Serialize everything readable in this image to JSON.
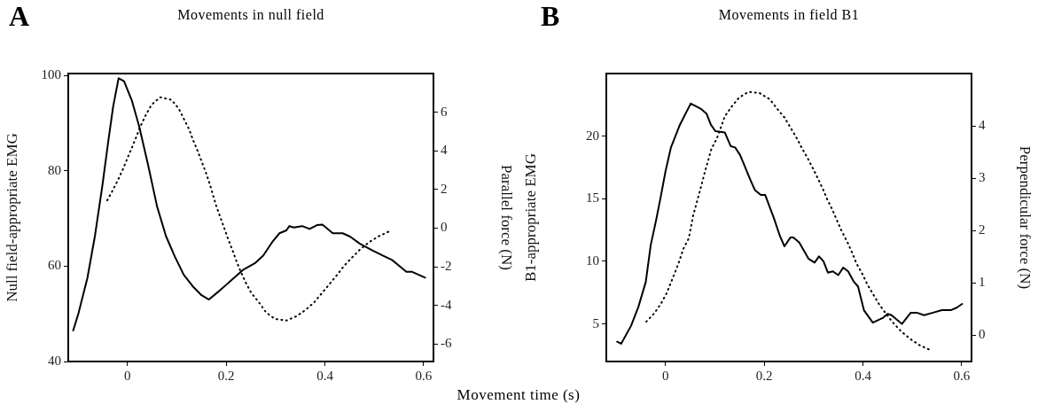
{
  "chart_data": [
    {
      "type": "line",
      "title": "Movements in null field",
      "xlabel": "Movement time (s)",
      "ylabel": "Null field-appropriate EMG",
      "y2label": "Parallel force (N)",
      "annotations": [
        "A"
      ],
      "xlim": [
        -0.12,
        0.62
      ],
      "xticks": [
        0,
        0.2,
        0.4,
        0.6
      ],
      "ylim": [
        40,
        100.4
      ],
      "yticks": [
        40,
        60,
        80,
        100
      ],
      "y2lim": [
        -6.9,
        8
      ],
      "y2ticks": [
        -6,
        -4,
        -2,
        0,
        2,
        4,
        6
      ],
      "series": [
        {
          "type": "line",
          "color": "#000000",
          "line_style": "solid",
          "x": [
            -0.11,
            -0.099,
            -0.081,
            -0.066,
            -0.051,
            -0.039,
            -0.029,
            -0.018,
            -0.007,
            0.009,
            0.024,
            0.042,
            0.06,
            0.078,
            0.096,
            0.114,
            0.132,
            0.15,
            0.165,
            0.186,
            0.21,
            0.234,
            0.258,
            0.275,
            0.293,
            0.308,
            0.322,
            0.328,
            0.337,
            0.354,
            0.369,
            0.384,
            0.395,
            0.416,
            0.436,
            0.451,
            0.471,
            0.498,
            0.518,
            0.536,
            0.55,
            0.565,
            0.577,
            0.603
          ],
          "values": [
            46.5,
            50.2,
            57.6,
            66.3,
            76.8,
            86.1,
            93.5,
            99.4,
            98.8,
            94.7,
            89.2,
            81.1,
            72.5,
            66.3,
            62.0,
            58.2,
            55.8,
            53.9,
            53.0,
            54.8,
            57.0,
            59.2,
            60.6,
            62.2,
            65.0,
            66.9,
            67.5,
            68.4,
            68.1,
            68.4,
            67.8,
            68.6,
            68.7,
            66.9,
            66.9,
            66.2,
            64.7,
            63.2,
            62.2,
            61.3,
            60.1,
            58.8,
            58.8,
            57.6
          ]
        },
        {
          "type": "line",
          "color": "#000000",
          "line_style": "dotted",
          "axis": "y2",
          "x": [
            -0.041,
            -0.03,
            -0.019,
            -0.009,
            0,
            0.009,
            0.018,
            0.027,
            0.037,
            0.049,
            0.066,
            0.089,
            0.104,
            0.114,
            0.125,
            0.133,
            0.142,
            0.151,
            0.159,
            0.167,
            0.18,
            0.188,
            0.196,
            0.204,
            0.213,
            0.221,
            0.23,
            0.24,
            0.251,
            0.267,
            0.281,
            0.299,
            0.322,
            0.343,
            0.362,
            0.379,
            0.394,
            0.41,
            0.425,
            0.439,
            0.455,
            0.471,
            0.49,
            0.509,
            0.531
          ],
          "values": [
            1.44,
            1.95,
            2.51,
            3.06,
            3.63,
            4.17,
            4.73,
            5.31,
            5.85,
            6.39,
            6.77,
            6.64,
            6.18,
            5.67,
            5.11,
            4.55,
            4.01,
            3.4,
            2.87,
            2.26,
            1.14,
            0.57,
            0.01,
            -0.57,
            -1.16,
            -1.72,
            -2.28,
            -2.83,
            -3.36,
            -3.86,
            -4.37,
            -4.7,
            -4.78,
            -4.55,
            -4.21,
            -3.82,
            -3.36,
            -2.87,
            -2.41,
            -1.95,
            -1.52,
            -1.11,
            -0.72,
            -0.42,
            -0.16
          ]
        }
      ]
    },
    {
      "type": "line",
      "title": "Movements in field B1",
      "ylabel": "B1-appropriate EMG",
      "y2label": "Perpendicular force (N)",
      "annotations": [
        "B"
      ],
      "xlim": [
        -0.12,
        0.62
      ],
      "xticks": [
        0,
        0.2,
        0.4,
        0.6
      ],
      "ylim": [
        2,
        25
      ],
      "yticks": [
        5,
        10,
        15,
        20
      ],
      "y2lim": [
        -0.5,
        5
      ],
      "y2ticks": [
        0,
        1,
        2,
        3,
        4
      ],
      "series": [
        {
          "type": "line",
          "color": "#000000",
          "line_style": "solid",
          "x": [
            -0.098,
            -0.09,
            -0.07,
            -0.055,
            -0.04,
            -0.03,
            -0.019,
            -0.01,
            0,
            0.011,
            0.029,
            0.051,
            0.071,
            0.083,
            0.092,
            0.101,
            0.12,
            0.132,
            0.141,
            0.151,
            0.172,
            0.181,
            0.193,
            0.202,
            0.22,
            0.232,
            0.241,
            0.253,
            0.259,
            0.271,
            0.29,
            0.302,
            0.311,
            0.32,
            0.329,
            0.339,
            0.35,
            0.36,
            0.37,
            0.381,
            0.39,
            0.402,
            0.42,
            0.441,
            0.45,
            0.458,
            0.479,
            0.497,
            0.509,
            0.524,
            0.542,
            0.56,
            0.578,
            0.59,
            0.601
          ],
          "values": [
            3.59,
            3.42,
            4.84,
            6.36,
            8.36,
            11.3,
            13.3,
            15.1,
            17.2,
            19.1,
            20.9,
            22.6,
            22.2,
            21.8,
            20.9,
            20.4,
            20.3,
            19.2,
            19.1,
            18.5,
            16.5,
            15.7,
            15.3,
            15.3,
            13.4,
            12.0,
            11.2,
            11.9,
            11.9,
            11.5,
            10.2,
            9.9,
            10.4,
            10.0,
            9.1,
            9.2,
            8.9,
            9.5,
            9.2,
            8.4,
            8.0,
            6.1,
            5.1,
            5.5,
            5.8,
            5.7,
            5.0,
            5.9,
            5.9,
            5.7,
            5.9,
            6.1,
            6.1,
            6.3,
            6.6
          ]
        },
        {
          "type": "line",
          "color": "#000000",
          "line_style": "dotted",
          "axis": "y2",
          "x": [
            -0.039,
            -0.022,
            -0.009,
            0.002,
            0.011,
            0.02,
            0.028,
            0.036,
            0.047,
            0.056,
            0.068,
            0.08,
            0.093,
            0.104,
            0.12,
            0.134,
            0.149,
            0.168,
            0.19,
            0.211,
            0.226,
            0.241,
            0.253,
            0.265,
            0.276,
            0.287,
            0.298,
            0.309,
            0.319,
            0.328,
            0.339,
            0.348,
            0.357,
            0.369,
            0.378,
            0.387,
            0.399,
            0.409,
            0.421,
            0.433,
            0.447,
            0.461,
            0.478,
            0.496,
            0.515,
            0.536
          ],
          "values": [
            0.26,
            0.43,
            0.61,
            0.8,
            1.01,
            1.22,
            1.42,
            1.65,
            1.85,
            2.29,
            2.7,
            3.13,
            3.56,
            3.76,
            4.18,
            4.37,
            4.54,
            4.65,
            4.63,
            4.51,
            4.33,
            4.16,
            3.97,
            3.78,
            3.58,
            3.4,
            3.2,
            2.99,
            2.79,
            2.59,
            2.38,
            2.18,
            1.99,
            1.77,
            1.58,
            1.37,
            1.17,
            0.97,
            0.78,
            0.59,
            0.41,
            0.24,
            0.07,
            -0.07,
            -0.19,
            -0.28
          ]
        }
      ]
    }
  ]
}
